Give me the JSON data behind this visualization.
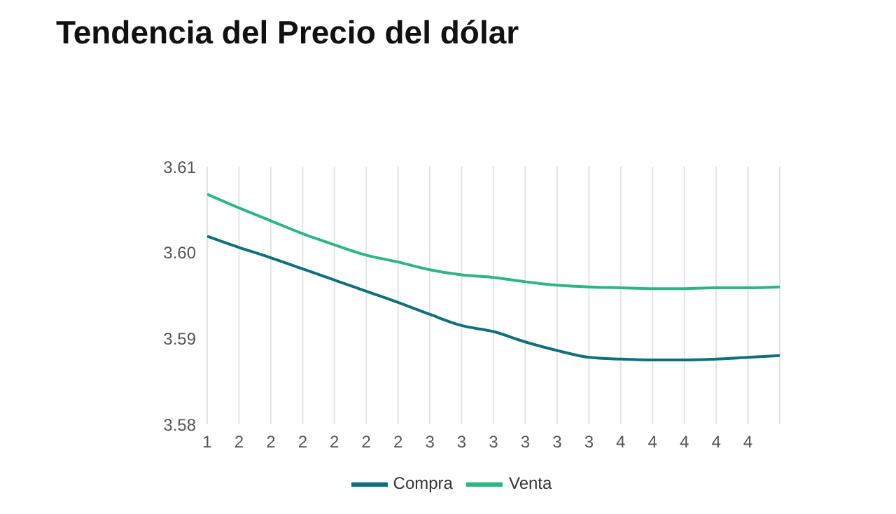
{
  "chart_data": {
    "type": "line",
    "title": "Tendencia del Precio del dólar",
    "categories": [
      "1",
      "2",
      "2",
      "2",
      "2",
      "2",
      "2",
      "3",
      "3",
      "3",
      "3",
      "3",
      "3",
      "4",
      "4",
      "4",
      "4",
      "4",
      null
    ],
    "series": [
      {
        "name": "Compra",
        "color": "#0f6f7c",
        "values": [
          3.6019,
          3.6006,
          3.5994,
          3.5981,
          3.5968,
          3.5955,
          3.5942,
          3.5928,
          3.5915,
          3.5908,
          3.5896,
          3.5886,
          3.5878,
          3.5876,
          3.5875,
          3.5875,
          3.5876,
          3.5878,
          3.588
        ]
      },
      {
        "name": "Venta",
        "color": "#2db682",
        "values": [
          3.6068,
          3.6052,
          3.6037,
          3.6022,
          3.6009,
          3.5997,
          3.5989,
          3.598,
          3.5974,
          3.5971,
          3.5966,
          3.5962,
          3.596,
          3.5959,
          3.5958,
          3.5958,
          3.5959,
          3.5959,
          3.596
        ]
      }
    ],
    "ylim": [
      3.58,
      3.61
    ],
    "yticks": [
      3.58,
      3.59,
      {
        "value": 3.6,
        "label": "3.60"
      },
      3.61
    ],
    "grid": "x",
    "legend": "bottom",
    "marker": "none",
    "line_style": "solid"
  }
}
